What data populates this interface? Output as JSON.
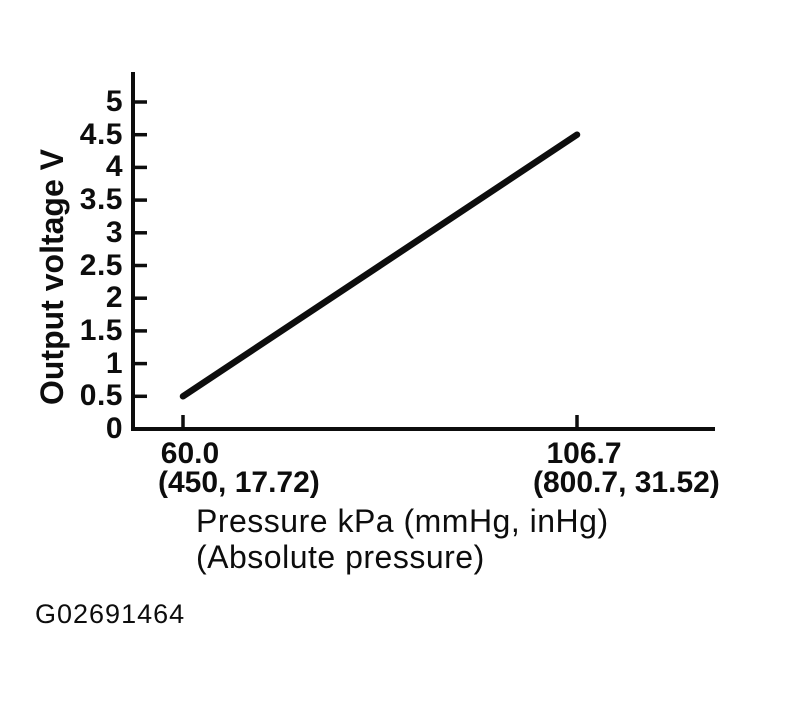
{
  "figure_code": "G02691464",
  "colors": {
    "ink": "#0d0d0d",
    "background": "#ffffff"
  },
  "chart_data": {
    "type": "line",
    "title": "",
    "ylabel": "Output voltage V",
    "xlabel": "Pressure kPa (mmHg, inHg)",
    "xlabel_line2": "(Absolute pressure)",
    "y_ticks": [
      "0",
      "0.5",
      "1",
      "1.5",
      "2",
      "2.5",
      "3",
      "3.5",
      "4",
      "4.5",
      "5"
    ],
    "x_ticks": [
      {
        "kpa": 60.0,
        "label": "60.0",
        "sub_label": "(450, 17.72)"
      },
      {
        "kpa": 106.7,
        "label": "106.7",
        "sub_label": "(800.7, 31.52)"
      }
    ],
    "xlim": [
      53.8,
      123.1
    ],
    "ylim": [
      0,
      5.46
    ],
    "grid": false,
    "legend": null,
    "series": [
      {
        "name": "sensor-output-line",
        "x": [
          60.0,
          106.7
        ],
        "y": [
          0.5,
          4.5
        ]
      }
    ]
  }
}
